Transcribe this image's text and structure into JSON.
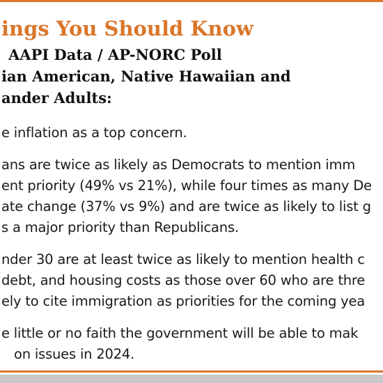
{
  "title": "ings You Should Know",
  "subtitle": [
    "AAPI Data / AP-NORC Poll",
    "ian American, Native Hawaiian and",
    "ander Adults:"
  ],
  "paragraphs": [
    [
      "e inflation as a top concern."
    ],
    [
      "ans are twice as likely as Democrats to mention imm",
      "ent priority (49% vs 21%), while four times as many De",
      "ate change (37% vs 9%) and are twice as likely to list g",
      "s a major priority than Republicans."
    ],
    [
      "nder 30 are at least twice as likely to mention health c",
      "debt, and housing costs as those over 60 who are thre",
      "ely to cite immigration as priorities for the coming yea"
    ],
    [
      "e little or no faith the government will be able to mak",
      "on issues in 2024."
    ]
  ]
}
